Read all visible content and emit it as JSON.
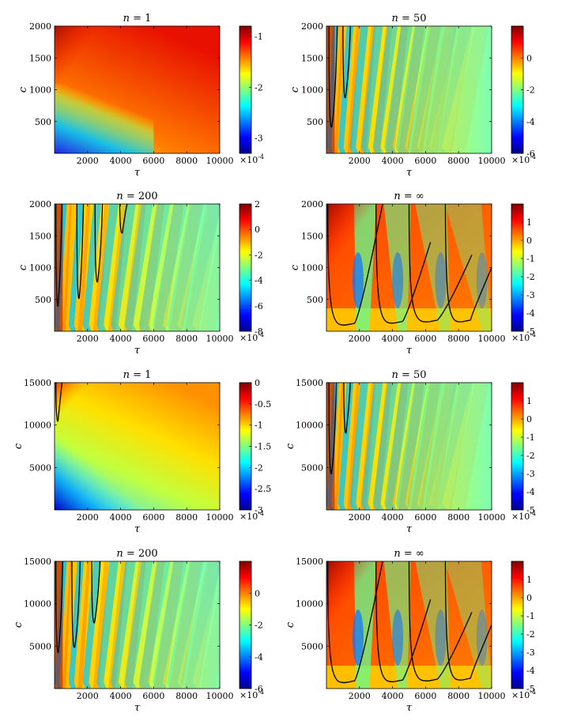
{
  "colors": {
    "jet": [
      "#00008f",
      "#0000ff",
      "#0080ff",
      "#00ffff",
      "#80ff80",
      "#ffff00",
      "#ff8000",
      "#ff0000",
      "#800000"
    ],
    "contour": "#000000"
  },
  "chart_data": [
    {
      "type": "heatmap",
      "title": "n = 1",
      "title_var": "n",
      "title_value": "1",
      "xlabel": "τ",
      "ylabel": "c",
      "xlim": [
        0,
        10000
      ],
      "ylim": [
        0,
        2000
      ],
      "xticks": [
        2000,
        4000,
        6000,
        8000,
        10000
      ],
      "yticks": [
        500,
        1000,
        1500,
        2000
      ],
      "colorbar": {
        "min": -3.3,
        "max": -0.8,
        "ticks": [
          -1,
          -2,
          -3
        ],
        "tick_labels": [
          "-1",
          "-2",
          "-3"
        ],
        "multiplier": "×10",
        "exponent": "-4"
      },
      "pattern": "corner",
      "zero_contours": []
    },
    {
      "type": "heatmap",
      "title": "n = 50",
      "title_var": "n",
      "title_value": "50",
      "xlabel": "τ",
      "ylabel": "c",
      "xlim": [
        0,
        10000
      ],
      "ylim": [
        0,
        2000
      ],
      "xticks": [
        2000,
        4000,
        6000,
        8000,
        10000
      ],
      "yticks": [
        500,
        1000,
        1500,
        2000
      ],
      "colorbar": {
        "min": -6,
        "max": 2,
        "ticks": [
          0,
          -2,
          -4,
          -6
        ],
        "tick_labels": [
          "0",
          "-2",
          "-4",
          "-6"
        ],
        "multiplier": "×10",
        "exponent": "-4"
      },
      "pattern": "stripes",
      "zero_contours": [
        {
          "x_left": 150,
          "x_right": 650,
          "y_tip": 420
        },
        {
          "x_left": 1000,
          "x_right": 1450,
          "y_tip": 880
        }
      ]
    },
    {
      "type": "heatmap",
      "title": "n = 200",
      "title_var": "n",
      "title_value": "200",
      "xlabel": "τ",
      "ylabel": "c",
      "xlim": [
        0,
        10000
      ],
      "ylim": [
        0,
        2000
      ],
      "xticks": [
        2000,
        4000,
        6000,
        8000,
        10000
      ],
      "yticks": [
        500,
        1000,
        1500,
        2000
      ],
      "colorbar": {
        "min": -8,
        "max": 2,
        "ticks": [
          2,
          0,
          -2,
          -4,
          -6,
          -8
        ],
        "tick_labels": [
          "2",
          "0",
          "-2",
          "-4",
          "-6",
          "-8"
        ],
        "multiplier": "×10",
        "exponent": "-4"
      },
      "pattern": "stripes",
      "zero_contours": [
        {
          "x_left": 80,
          "x_right": 450,
          "y_tip": 400
        },
        {
          "x_left": 1350,
          "x_right": 1750,
          "y_tip": 520
        },
        {
          "x_left": 2450,
          "x_right": 2900,
          "y_tip": 780
        },
        {
          "x_left": 3950,
          "x_right": 4400,
          "y_tip": 1550
        }
      ]
    },
    {
      "type": "heatmap",
      "title": "n = ∞",
      "title_var": "n",
      "title_value": "∞",
      "xlabel": "τ",
      "ylabel": "c",
      "xlim": [
        0,
        10000
      ],
      "ylim": [
        0,
        2000
      ],
      "xticks": [
        2000,
        4000,
        6000,
        8000,
        10000
      ],
      "yticks": [
        500,
        1000,
        1500,
        2000
      ],
      "colorbar": {
        "min": -5,
        "max": 2,
        "ticks": [
          1,
          0,
          -1,
          -2,
          -3,
          -4,
          -5
        ],
        "tick_labels": [
          "1",
          "0",
          "-1",
          "-2",
          "-3",
          "-4",
          "-5"
        ],
        "multiplier": "×10",
        "exponent": "-4"
      },
      "pattern": "wide",
      "zero_contours": [
        {
          "x_left": 80,
          "x_right": 3400,
          "y_tip": 150
        },
        {
          "x_left": 3000,
          "x_right": 6300,
          "y_tip": 180
        },
        {
          "x_left": 5000,
          "x_right": 8800,
          "y_tip": 200
        },
        {
          "x_left": 7200,
          "x_right": 10000,
          "y_tip": 200
        }
      ]
    },
    {
      "type": "heatmap",
      "title": "n = 1",
      "title_var": "n",
      "title_value": "1",
      "xlabel": "τ",
      "ylabel": "c",
      "xlim": [
        0,
        10000
      ],
      "ylim": [
        0,
        15000
      ],
      "xticks": [
        2000,
        4000,
        6000,
        8000,
        10000
      ],
      "yticks": [
        5000,
        10000,
        15000
      ],
      "colorbar": {
        "min": -3,
        "max": 0,
        "ticks": [
          0,
          -0.5,
          -1,
          -1.5,
          -2,
          -2.5,
          -3
        ],
        "tick_labels": [
          "0",
          "-0.5",
          "-1",
          "-1.5",
          "-2",
          "-2.5",
          "-3"
        ],
        "multiplier": "×10",
        "exponent": "-4"
      },
      "pattern": "corner",
      "zero_contours": [
        {
          "x_left": 80,
          "x_right": 450,
          "y_tip": 10500
        }
      ]
    },
    {
      "type": "heatmap",
      "title": "n = 50",
      "title_var": "n",
      "title_value": "50",
      "xlabel": "τ",
      "ylabel": "c",
      "xlim": [
        0,
        10000
      ],
      "ylim": [
        0,
        15000
      ],
      "xticks": [
        2000,
        4000,
        6000,
        8000,
        10000
      ],
      "yticks": [
        5000,
        10000,
        15000
      ],
      "colorbar": {
        "min": -5,
        "max": 2,
        "ticks": [
          1,
          0,
          -1,
          -2,
          -3,
          -4,
          -5
        ],
        "tick_labels": [
          "1",
          "0",
          "-1",
          "-2",
          "-3",
          "-4",
          "-5"
        ],
        "multiplier": "×10",
        "exponent": "-4"
      },
      "pattern": "stripes",
      "zero_contours": [
        {
          "x_left": 150,
          "x_right": 600,
          "y_tip": 4300
        },
        {
          "x_left": 1050,
          "x_right": 1450,
          "y_tip": 9100
        }
      ]
    },
    {
      "type": "heatmap",
      "title": "n = 200",
      "title_var": "n",
      "title_value": "200",
      "xlabel": "τ",
      "ylabel": "c",
      "xlim": [
        0,
        10000
      ],
      "ylim": [
        0,
        15000
      ],
      "xticks": [
        2000,
        4000,
        6000,
        8000,
        10000
      ],
      "yticks": [
        5000,
        10000,
        15000
      ],
      "colorbar": {
        "min": -6,
        "max": 2,
        "ticks": [
          0,
          -2,
          -4,
          -6
        ],
        "tick_labels": [
          "0",
          "-2",
          "-4",
          "-6"
        ],
        "multiplier": "×10",
        "exponent": "-4"
      },
      "pattern": "stripes",
      "zero_contours": [
        {
          "x_left": 80,
          "x_right": 500,
          "y_tip": 4300
        },
        {
          "x_left": 1050,
          "x_right": 1550,
          "y_tip": 4900
        },
        {
          "x_left": 2250,
          "x_right": 2750,
          "y_tip": 7800
        }
      ]
    },
    {
      "type": "heatmap",
      "title": "n = ∞",
      "title_var": "n",
      "title_value": "∞",
      "xlabel": "τ",
      "ylabel": "c",
      "xlim": [
        0,
        10000
      ],
      "ylim": [
        0,
        15000
      ],
      "xticks": [
        2000,
        4000,
        6000,
        8000,
        10000
      ],
      "yticks": [
        5000,
        10000,
        15000
      ],
      "colorbar": {
        "min": -5,
        "max": 2,
        "ticks": [
          1,
          0,
          -1,
          -2,
          -3,
          -4,
          -5
        ],
        "tick_labels": [
          "1",
          "0",
          "-1",
          "-2",
          "-3",
          "-4",
          "-5"
        ],
        "multiplier": "×10",
        "exponent": "-4"
      },
      "pattern": "wide",
      "zero_contours": [
        {
          "x_left": 80,
          "x_right": 3400,
          "y_tip": 1100
        },
        {
          "x_left": 3000,
          "x_right": 6300,
          "y_tip": 1200
        },
        {
          "x_left": 5000,
          "x_right": 8800,
          "y_tip": 1300
        },
        {
          "x_left": 7200,
          "x_right": 10000,
          "y_tip": 1400
        }
      ]
    }
  ]
}
